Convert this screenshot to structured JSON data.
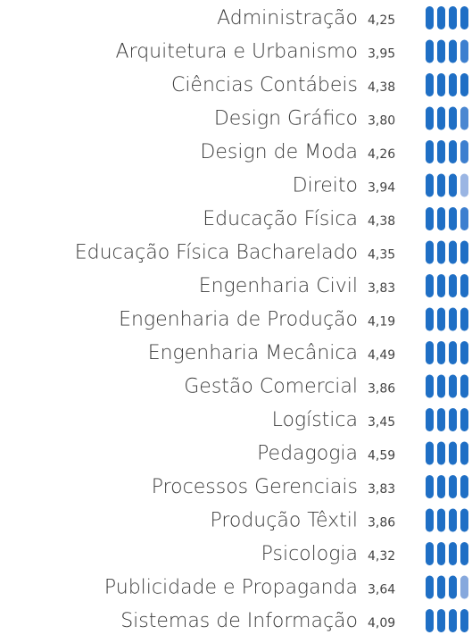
{
  "list": {
    "pill_color": "#1f6fc5",
    "rows": [
      {
        "course": "Administração",
        "score": "4,25"
      },
      {
        "course": "Arquitetura e Urbanismo",
        "score": "3,95",
        "last_pill_color": "#3d7fcf"
      },
      {
        "course": "Ciências Contábeis",
        "score": "4,38"
      },
      {
        "course": "Design Gráfico",
        "score": "3,80",
        "last_pill_color": "#4a87d1"
      },
      {
        "course": "Design de Moda",
        "score": "4,26",
        "last_pill_color": "#3d7fcf"
      },
      {
        "course": "Direito",
        "score": "3,94",
        "last_pill_color": "#9ab5e3"
      },
      {
        "course": "Educação Física",
        "score": "4,38",
        "last_pill_color": "#3d7fcf"
      },
      {
        "course": "Educação Física Bacharelado",
        "score": "4,35"
      },
      {
        "course": "Engenharia Civil",
        "score": "3,83"
      },
      {
        "course": "Engenharia de Produção",
        "score": "4,19"
      },
      {
        "course": "Engenharia Mecânica",
        "score": "4,49"
      },
      {
        "course": "Gestão Comercial",
        "score": "3,86"
      },
      {
        "course": "Logística",
        "score": "3,45"
      },
      {
        "course": "Pedagogia",
        "score": "4,59"
      },
      {
        "course": "Processos Gerenciais",
        "score": "3,83"
      },
      {
        "course": "Produção Têxtil",
        "score": "3,86"
      },
      {
        "course": "Psicologia",
        "score": "4,32"
      },
      {
        "course": "Publicidade e Propaganda",
        "score": "3,64",
        "last_pill_color": "#86a8dd"
      },
      {
        "course": "Sistemas de Informação",
        "score": "4,09"
      }
    ]
  }
}
